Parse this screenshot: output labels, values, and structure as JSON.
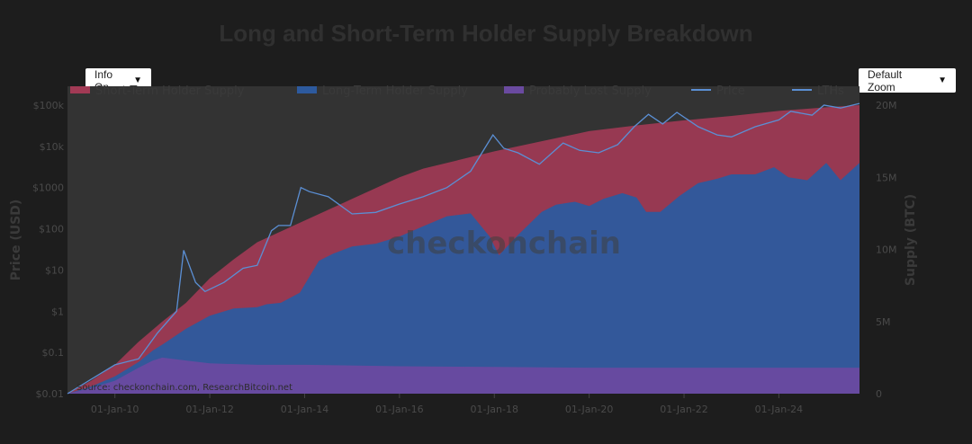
{
  "controls": {
    "info_label": "Info On",
    "zoom_label": "Default Zoom"
  },
  "colors": {
    "background": "#1d1d1d",
    "plot_bg": "#333333",
    "sth": "#a23a55",
    "lth": "#2d5a9e",
    "lost": "#6a4aa0",
    "price": "#5b8fd4"
  },
  "chart_data": {
    "type": "area",
    "title": "Long and Short-Term Holder Supply Breakdown",
    "ylabel_left": "Price (USD)",
    "ylabel_right": "Supply (BTC)",
    "y_left_scale": "log",
    "y_left_range": [
      0.01,
      100000
    ],
    "y_left_ticks": [
      "$0.01",
      "$0.1",
      "$1",
      "$10",
      "$100",
      "$1000",
      "$10k",
      "$100k"
    ],
    "y_right_range": [
      0,
      20000000
    ],
    "y_right_ticks": [
      "0",
      "5M",
      "10M",
      "15M",
      "20M"
    ],
    "x_ticks": [
      "01-Jan-10",
      "01-Jan-12",
      "01-Jan-14",
      "01-Jan-16",
      "01-Jan-18",
      "01-Jan-20",
      "01-Jan-22",
      "01-Jan-24"
    ],
    "x_range": [
      2009.0,
      2025.7
    ],
    "legend": [
      "Short-Term Holder Supply",
      "Long-Term Holder Supply",
      "Probably Lost Supply",
      "Price",
      "LTHs"
    ],
    "legend_placement": "top",
    "watermark": "checkonchain",
    "source": "Source: checkonchain.com, ResearchBitcoin.net",
    "series": [
      {
        "name": "Short-Term Holder Supply",
        "stack": "top",
        "x": [
          2009.0,
          2009.5,
          2010.0,
          2010.5,
          2011.0,
          2011.5,
          2012.0,
          2012.5,
          2013.0,
          2014.0,
          2015.0,
          2016.0,
          2016.5,
          2017.0,
          2018.0,
          2019.0,
          2020.0,
          2021.0,
          2022.0,
          2023.0,
          2024.0,
          2025.0,
          2025.7
        ],
        "y": [
          0,
          900000,
          2000000,
          3600000,
          5000000,
          6300000,
          8000000,
          9300000,
          10500000,
          12000000,
          13500000,
          15000000,
          15600000,
          16000000,
          16800000,
          17500000,
          18200000,
          18600000,
          18950000,
          19250000,
          19600000,
          19850000,
          20000000
        ]
      },
      {
        "name": "Long-Term Holder Supply",
        "x": [
          2009.0,
          2009.5,
          2010.0,
          2010.5,
          2010.8,
          2011.0,
          2011.5,
          2012.0,
          2012.5,
          2013.0,
          2013.2,
          2013.5,
          2013.9,
          2014.3,
          2014.6,
          2015.0,
          2015.5,
          2016.0,
          2016.5,
          2017.0,
          2017.5,
          2017.9,
          2018.1,
          2018.5,
          2019.0,
          2019.3,
          2019.7,
          2020.0,
          2020.3,
          2020.7,
          2021.0,
          2021.2,
          2021.5,
          2021.9,
          2022.3,
          2022.7,
          2023.0,
          2023.5,
          2023.9,
          2024.2,
          2024.6,
          2025.0,
          2025.3,
          2025.7
        ],
        "y": [
          0,
          500000,
          1200000,
          2200000,
          3000000,
          3400000,
          4500000,
          5400000,
          5900000,
          6000000,
          6200000,
          6300000,
          7000000,
          9200000,
          9700000,
          10200000,
          10400000,
          10900000,
          11600000,
          12300000,
          12500000,
          10900000,
          9600000,
          11000000,
          12600000,
          13100000,
          13300000,
          13000000,
          13500000,
          13900000,
          13600000,
          12600000,
          12600000,
          13700000,
          14600000,
          14900000,
          15200000,
          15200000,
          15700000,
          15000000,
          14800000,
          16000000,
          14800000,
          16000000
        ]
      },
      {
        "name": "Probably Lost Supply",
        "x": [
          2009.0,
          2009.5,
          2010.0,
          2010.5,
          2010.8,
          2011.0,
          2011.5,
          2012.0,
          2013.0,
          2014.0,
          2016.0,
          2018.0,
          2020.0,
          2022.0,
          2024.0,
          2025.7
        ],
        "y": [
          0,
          400000,
          900000,
          1800000,
          2300000,
          2500000,
          2300000,
          2100000,
          2000000,
          2000000,
          1900000,
          1850000,
          1800000,
          1800000,
          1800000,
          1800000
        ]
      },
      {
        "name": "Price",
        "x": [
          2009.0,
          2010.0,
          2010.5,
          2010.9,
          2011.3,
          2011.45,
          2011.7,
          2011.9,
          2012.3,
          2012.7,
          2013.0,
          2013.3,
          2013.45,
          2013.7,
          2013.92,
          2014.1,
          2014.5,
          2015.0,
          2015.5,
          2016.0,
          2016.5,
          2017.0,
          2017.5,
          2017.97,
          2018.2,
          2018.5,
          2018.95,
          2019.45,
          2019.8,
          2020.2,
          2020.6,
          2020.95,
          2021.25,
          2021.55,
          2021.85,
          2022.3,
          2022.7,
          2023.0,
          2023.5,
          2024.0,
          2024.25,
          2024.7,
          2024.95,
          2025.3,
          2025.7
        ],
        "y": [
          0.01,
          0.05,
          0.07,
          0.3,
          1.0,
          30,
          5,
          3,
          5,
          11,
          13,
          90,
          120,
          120,
          1000,
          800,
          600,
          230,
          250,
          400,
          600,
          1000,
          2500,
          19000,
          9000,
          7000,
          3700,
          12000,
          8000,
          7000,
          11000,
          30000,
          60000,
          35000,
          67000,
          30000,
          19000,
          17000,
          30000,
          44000,
          71000,
          57000,
          100000,
          85000,
          110000
        ]
      },
      {
        "name": "LTHs",
        "x": [],
        "y": []
      }
    ]
  }
}
